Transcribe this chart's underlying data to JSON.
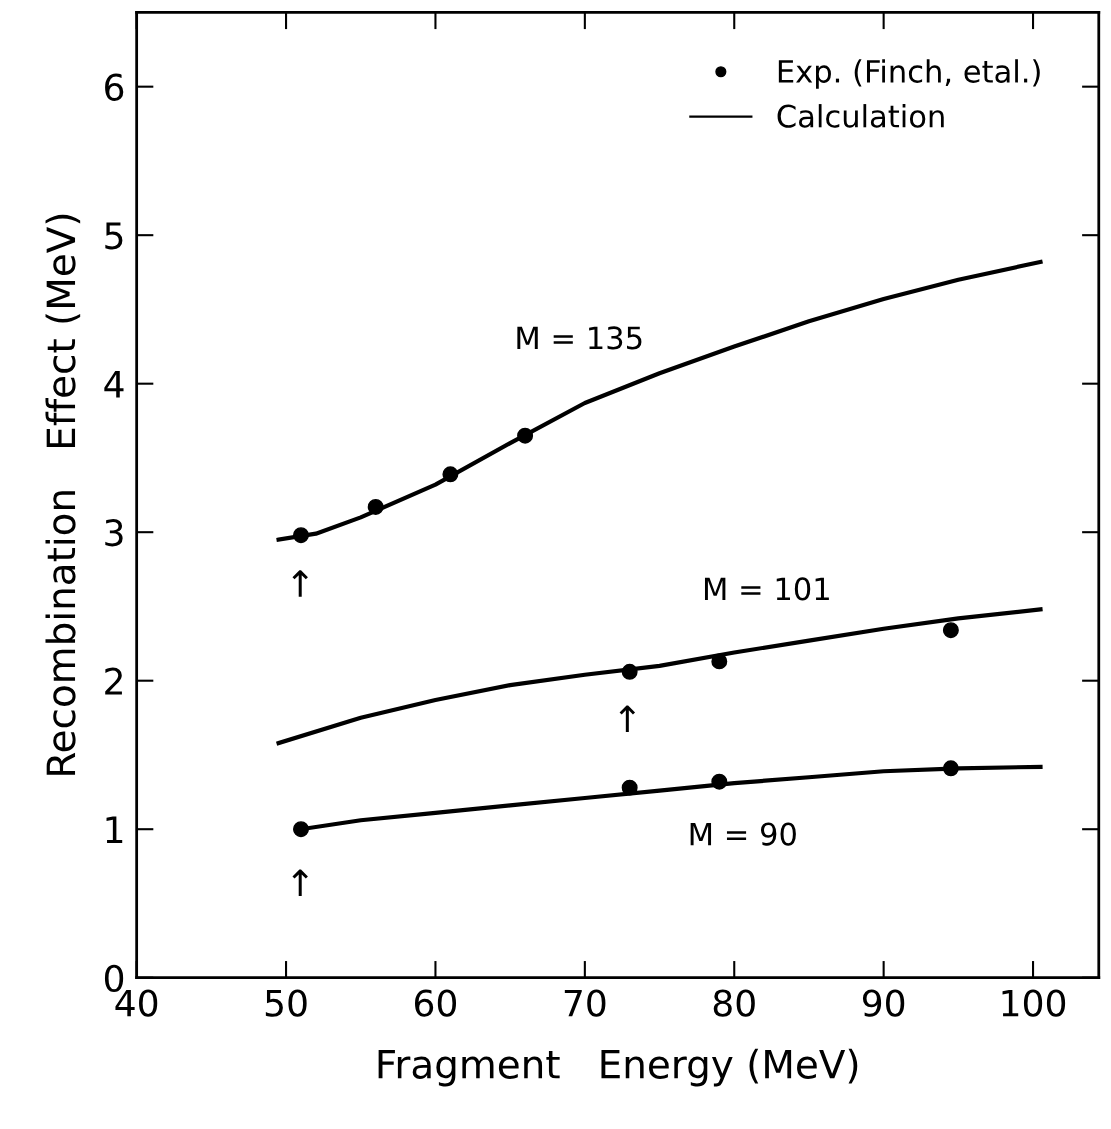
{
  "chart_data": {
    "type": "line",
    "xlabel": "Fragment   Energy (MeV)",
    "ylabel": "Recombination   Effect (MeV)",
    "xlim": [
      40,
      104.4
    ],
    "ylim": [
      0,
      6.5
    ],
    "xticks": [
      40,
      50,
      60,
      70,
      80,
      90,
      100
    ],
    "yticks": [
      0,
      1,
      2,
      3,
      4,
      5,
      6
    ],
    "grid": false,
    "legend": "top right",
    "color": "#000000",
    "series": [
      {
        "type": "scatter",
        "name": "Exp. (Finch, etal.)",
        "marker": "circle",
        "x": [
          51,
          56,
          61,
          66,
          73,
          79,
          94.5,
          51,
          73,
          79,
          94.5
        ],
        "values": [
          2.98,
          3.17,
          3.39,
          3.65,
          2.06,
          2.13,
          2.34,
          1.0,
          1.28,
          1.32,
          1.41
        ]
      },
      {
        "name": "Calculation",
        "x": [
          49.5,
          52,
          55,
          60,
          65,
          70,
          75,
          80,
          85,
          90,
          95,
          100.5
        ],
        "values": [
          2.95,
          2.99,
          3.1,
          3.32,
          3.6,
          3.87,
          4.07,
          4.25,
          4.42,
          4.57,
          4.7,
          4.82
        ]
      },
      {
        "x": [
          49.5,
          55,
          60,
          65,
          70,
          75,
          80,
          85,
          90,
          95,
          100.5
        ],
        "values": [
          1.58,
          1.75,
          1.87,
          1.97,
          2.04,
          2.1,
          2.19,
          2.27,
          2.35,
          2.42,
          2.48
        ]
      },
      {
        "x": [
          51,
          55,
          60,
          65,
          70,
          75,
          80,
          85,
          90,
          95,
          100.5
        ],
        "values": [
          1.0,
          1.06,
          1.11,
          1.16,
          1.21,
          1.26,
          1.31,
          1.35,
          1.39,
          1.41,
          1.42
        ]
      }
    ],
    "annotations": [
      "M = 135",
      "M = 101",
      "M = 90",
      "↑",
      "↑",
      "↑"
    ]
  }
}
